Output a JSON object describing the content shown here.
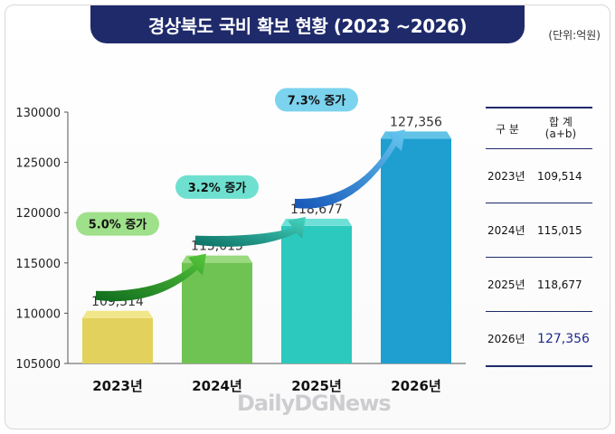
{
  "header": {
    "title": "경상북도 국비 확보 현황 (2023 ~2026)",
    "unit": "(단위:억원)"
  },
  "chart_data": {
    "type": "bar",
    "categories": [
      "2023년",
      "2024년",
      "2025년",
      "2026년"
    ],
    "values": [
      109514,
      115015,
      118677,
      127356
    ],
    "value_labels": [
      "109,514",
      "115,015",
      "118,677",
      "127,356"
    ],
    "ylim": [
      105000,
      130000
    ],
    "yticks": [
      105000,
      110000,
      115000,
      120000,
      125000,
      130000
    ],
    "ytick_labels": [
      "105000",
      "110000",
      "115000",
      "120000",
      "125000",
      "130000"
    ],
    "bar_colors": [
      "#e2d15c",
      "#6fc352",
      "#2cc9be",
      "#1e9fd0"
    ],
    "bar_top_colors": [
      "#f1e68a",
      "#9ad97f",
      "#6ee0d7",
      "#63c3e6"
    ],
    "increase_badges": [
      {
        "text": "5.0% 증가",
        "color": "#9fe08a"
      },
      {
        "text": "3.2% 증가",
        "color": "#6fe0cf"
      },
      {
        "text": "7.3% 증가",
        "color": "#7cd3ee"
      }
    ],
    "grid": false
  },
  "table": {
    "headers": {
      "col1": "구 분",
      "col2": "합 계",
      "col2_sub": "(a+b)"
    },
    "rows": [
      {
        "year": "2023년",
        "value": "109,514"
      },
      {
        "year": "2024년",
        "value": "115,015"
      },
      {
        "year": "2025년",
        "value": "118,677"
      },
      {
        "year": "2026년",
        "value": "127,356"
      }
    ]
  },
  "watermark": "DailyDGNews"
}
